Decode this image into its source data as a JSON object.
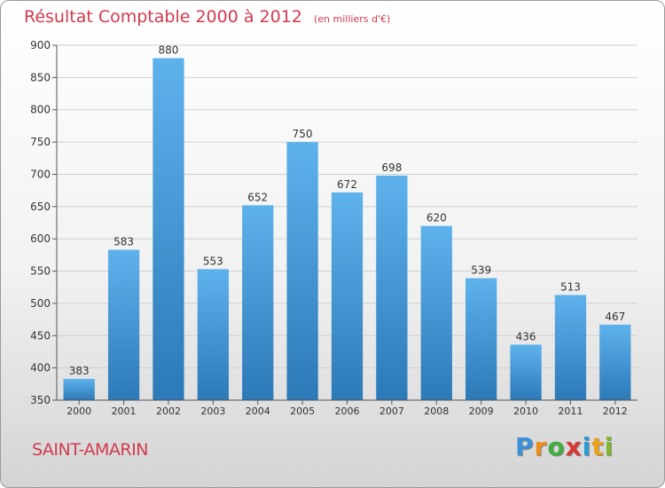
{
  "title": "Résultat Comptable 2000 à 2012",
  "unit_label": "(en milliers d'€)",
  "commune": "SAINT-AMARIN",
  "brand": {
    "letters": [
      "P",
      "r",
      "o",
      "x",
      "i",
      "t",
      "i"
    ],
    "colors": [
      "#3d8fd6",
      "#f08c1a",
      "#3fae3f",
      "#d93838",
      "#2a9bd6",
      "#e9a21b",
      "#7fb82b"
    ]
  },
  "colors": {
    "bar_top": "#5eb2ec",
    "bar_bottom": "#2c79b8",
    "title": "#d23a4e",
    "grid": "#d0d0d0",
    "axis": "#555555"
  },
  "chart_data": {
    "type": "bar",
    "categories": [
      "2000",
      "2001",
      "2002",
      "2003",
      "2004",
      "2005",
      "2006",
      "2007",
      "2008",
      "2009",
      "2010",
      "2011",
      "2012"
    ],
    "values": [
      383,
      583,
      880,
      553,
      652,
      750,
      672,
      698,
      620,
      539,
      436,
      513,
      467
    ],
    "ylim": [
      350,
      900
    ],
    "yticks": [
      350,
      400,
      450,
      500,
      550,
      600,
      650,
      700,
      750,
      800,
      850,
      900
    ],
    "grid": true
  }
}
